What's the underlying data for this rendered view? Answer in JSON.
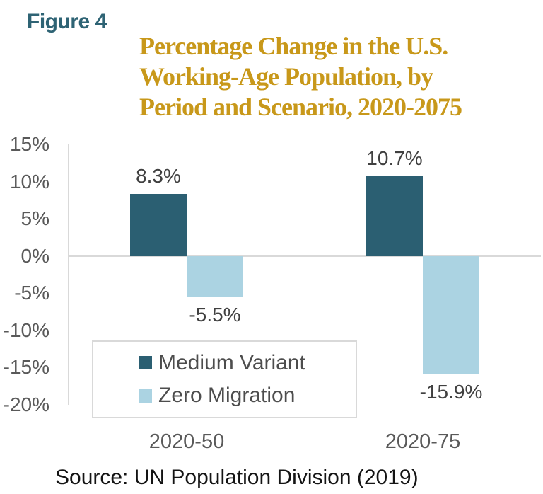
{
  "figure_label": "Figure 4",
  "title_lines": [
    "Percentage Change in the U.S.",
    "Working-Age Population, by",
    "Period and Scenario, 2020-2075"
  ],
  "source": "Source: UN Population Division (2019)",
  "colors": {
    "figure_label": "#2E6374",
    "title": "#C8981A",
    "axis_line": "#D9D9D9",
    "tick_text": "#595959",
    "data_label_text": "#404040",
    "medium_variant": "#2B5F72",
    "zero_migration": "#ABD3E2"
  },
  "chart_data": {
    "type": "bar",
    "categories": [
      "2020-50",
      "2020-75"
    ],
    "series": [
      {
        "name": "Medium Variant",
        "color": "#2B5F72",
        "values": [
          8.3,
          10.7
        ],
        "labels": [
          "8.3%",
          "10.7%"
        ]
      },
      {
        "name": "Zero Migration",
        "color": "#ABD3E2",
        "values": [
          -5.5,
          -15.9
        ],
        "labels": [
          "-5.5%",
          "-15.9%"
        ]
      }
    ],
    "title": "Percentage Change in the U.S. Working-Age Population, by Period and Scenario, 2020-2075",
    "xlabel": "",
    "ylabel": "",
    "ylim": [
      -20,
      15
    ],
    "ytick_values": [
      15,
      10,
      5,
      0,
      -5,
      -10,
      -15,
      -20
    ],
    "ytick_labels": [
      "15%",
      "10%",
      "5%",
      "0%",
      "-5%",
      "-10%",
      "-15%",
      "-20%"
    ],
    "grid": false,
    "legend_position": "inside-bottom-left"
  }
}
